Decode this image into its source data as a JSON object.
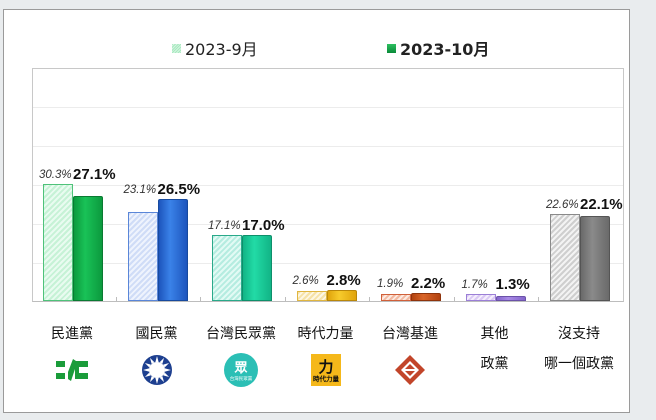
{
  "legend": {
    "sep_label": "2023-9月",
    "oct_label": "2023-10月"
  },
  "chart_data": {
    "type": "bar",
    "title": "",
    "xlabel": "",
    "ylabel": "",
    "ylim": [
      0,
      60
    ],
    "grid": true,
    "legend_position": "top",
    "categories": [
      "民進黨",
      "國民黨",
      "台灣民眾黨",
      "時代力量",
      "台灣基進",
      "其他政黨",
      "沒支持哪一個政黨"
    ],
    "series": [
      {
        "name": "2023-9月",
        "values": [
          30.3,
          23.1,
          17.1,
          2.6,
          1.9,
          1.7,
          22.6
        ]
      },
      {
        "name": "2023-10月",
        "values": [
          27.1,
          26.5,
          17.0,
          2.8,
          2.2,
          1.3,
          22.1
        ]
      }
    ]
  },
  "labels": {
    "sep": [
      "30.3%",
      "23.1%",
      "17.1%",
      "2.6%",
      "1.9%",
      "1.7%",
      "22.6%"
    ],
    "oct": [
      "27.1%",
      "26.5%",
      "17.0%",
      "2.8%",
      "2.2%",
      "1.3%",
      "22.1%"
    ]
  },
  "categories": [
    {
      "line1": "民進黨",
      "line2": "",
      "logo": "dpp-logo"
    },
    {
      "line1": "國民黨",
      "line2": "",
      "logo": "kmt-logo"
    },
    {
      "line1": "台灣民眾黨",
      "line2": "",
      "logo": "tpp-logo"
    },
    {
      "line1": "時代力量",
      "line2": "",
      "logo": "npp-logo"
    },
    {
      "line1": "台灣基進",
      "line2": "",
      "logo": "tsp-logo"
    },
    {
      "line1": "其他",
      "line2": "政黨",
      "logo": ""
    },
    {
      "line1": "沒支持",
      "line2": "哪一個政黨",
      "logo": ""
    }
  ],
  "logo_text": {
    "tpp_main": "眾",
    "tpp_sub": "台灣民眾黨",
    "npp_main": "力",
    "npp_sub": "時代力量"
  },
  "colors": {
    "dpp_oct": "#12b54a",
    "kmt_oct": "#2f6fd6",
    "tpp_oct": "#1ccf9a",
    "npp_oct": "#f0bd1a",
    "tsp_oct": "#c8501e",
    "other_oct": "#9c7ad8",
    "none_oct": "#7a7a7a"
  }
}
